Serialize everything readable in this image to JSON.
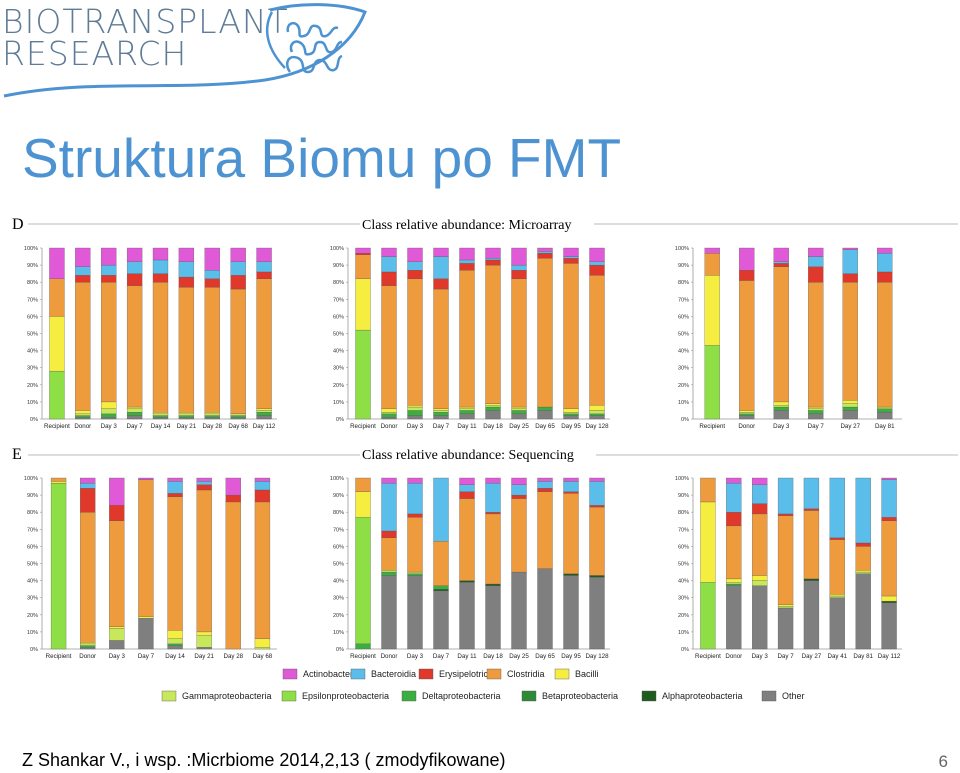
{
  "logo": {
    "line1": "BIOTRANSPLANT",
    "line2": "RESEARCH"
  },
  "title": "Struktura Biomu po FMT",
  "footer": "Z Shankar V., i wsp. :Micrbiome 2014,2,13 ( zmodyfikowane)",
  "page_number": "6",
  "colors": {
    "Actinobacteria": "#e05ad7",
    "Bacteroidia": "#5bbde9",
    "Erysipelotrichi": "#e0392b",
    "Clostridia": "#ee9b3e",
    "Bacilli": "#f5ed3f",
    "Gammaproteobacteria": "#c7e85a",
    "Epsilonproteobacteria": "#8ede45",
    "Deltaproteobacteria": "#3cae41",
    "Betaproteobacteria": "#2e8a36",
    "Alphaproteobacteria": "#1f5a20",
    "Other": "#7f7f7f"
  },
  "chart_data": {
    "type": "bar",
    "stacked": true,
    "ylim": [
      0,
      100
    ],
    "yticks": [
      "0%",
      "10%",
      "20%",
      "30%",
      "40%",
      "50%",
      "60%",
      "70%",
      "80%",
      "90%",
      "100%"
    ],
    "panel_labels": [
      "D",
      "E"
    ],
    "row_titles": [
      "Class relative abundance: Microarray",
      "Class relative abundance: Sequencing"
    ],
    "stack_order": [
      "Other",
      "Alphaproteobacteria",
      "Betaproteobacteria",
      "Deltaproteobacteria",
      "Epsilonproteobacteria",
      "Gammaproteobacteria",
      "Bacilli",
      "Clostridia",
      "Erysipelotrichi",
      "Bacteroidia",
      "Actinobacteria"
    ],
    "legend": {
      "row1": [
        "Actinobacteria",
        "Bacteroidia",
        "Erysipelotrichi",
        "Clostridia",
        "Bacilli"
      ],
      "row2": [
        "Gammaproteobacteria",
        "Epsilonproteobacteria",
        "Deltaproteobacteria",
        "Betaproteobacteria",
        "Alphaproteobacteria",
        "Other"
      ]
    },
    "panels": [
      {
        "row": 0,
        "col": 0,
        "categories": [
          "Recipient",
          "Donor",
          "Day 3",
          "Day 7",
          "Day 14",
          "Day 21",
          "Day 28",
          "Day 68",
          "Day 112"
        ],
        "bars": [
          {
            "Epsilonproteobacteria": 28,
            "Bacilli": 32,
            "Clostridia": 22,
            "Actinobacteria": 18
          },
          {
            "Other": 1,
            "Deltaproteobacteria": 1,
            "Gammaproteobacteria": 1,
            "Bacilli": 2,
            "Clostridia": 75,
            "Erysipelotrichi": 4,
            "Bacteroidia": 5,
            "Actinobacteria": 11
          },
          {
            "Other": 1,
            "Deltaproteobacteria": 2,
            "Gammaproteobacteria": 3,
            "Bacilli": 4,
            "Clostridia": 70,
            "Erysipelotrichi": 4,
            "Bacteroidia": 6,
            "Actinobacteria": 10
          },
          {
            "Other": 2,
            "Deltaproteobacteria": 2,
            "Gammaproteobacteria": 2,
            "Bacilli": 1,
            "Clostridia": 71,
            "Erysipelotrichi": 7,
            "Bacteroidia": 7,
            "Actinobacteria": 8
          },
          {
            "Other": 1,
            "Deltaproteobacteria": 1,
            "Gammaproteobacteria": 1,
            "Bacilli": 1,
            "Clostridia": 76,
            "Erysipelotrichi": 5,
            "Bacteroidia": 8,
            "Actinobacteria": 7
          },
          {
            "Other": 1,
            "Deltaproteobacteria": 1,
            "Gammaproteobacteria": 1,
            "Bacilli": 1,
            "Clostridia": 73,
            "Erysipelotrichi": 6,
            "Bacteroidia": 9,
            "Actinobacteria": 8
          },
          {
            "Other": 1,
            "Deltaproteobacteria": 1,
            "Gammaproteobacteria": 1,
            "Bacilli": 1,
            "Clostridia": 73,
            "Erysipelotrichi": 5,
            "Bacteroidia": 5,
            "Actinobacteria": 13
          },
          {
            "Other": 1,
            "Deltaproteobacteria": 1,
            "Gammaproteobacteria": 1,
            "Clostridia": 73,
            "Erysipelotrichi": 8,
            "Bacteroidia": 8,
            "Actinobacteria": 8
          },
          {
            "Other": 2,
            "Deltaproteobacteria": 2,
            "Gammaproteobacteria": 1,
            "Bacilli": 1,
            "Clostridia": 76,
            "Erysipelotrichi": 4,
            "Bacteroidia": 6,
            "Actinobacteria": 8
          }
        ]
      },
      {
        "row": 0,
        "col": 1,
        "categories": [
          "Recipient",
          "Donor",
          "Day 3",
          "Day 7",
          "Day 11",
          "Day 18",
          "Day 25",
          "Day 65",
          "Day 95",
          "Day 128"
        ],
        "bars": [
          {
            "Epsilonproteobacteria": 52,
            "Bacilli": 30,
            "Clostridia": 14,
            "Erysipelotrichi": 1,
            "Actinobacteria": 3
          },
          {
            "Other": 1,
            "Deltaproteobacteria": 2,
            "Gammaproteobacteria": 1,
            "Bacilli": 2,
            "Clostridia": 72,
            "Erysipelotrichi": 8,
            "Bacteroidia": 9,
            "Actinobacteria": 5
          },
          {
            "Other": 2,
            "Deltaproteobacteria": 3,
            "Gammaproteobacteria": 2,
            "Bacilli": 1,
            "Clostridia": 74,
            "Erysipelotrichi": 5,
            "Bacteroidia": 5,
            "Actinobacteria": 8
          },
          {
            "Other": 2,
            "Deltaproteobacteria": 2,
            "Gammaproteobacteria": 1,
            "Bacilli": 1,
            "Clostridia": 70,
            "Erysipelotrichi": 6,
            "Bacteroidia": 13,
            "Actinobacteria": 5
          },
          {
            "Other": 3,
            "Deltaproteobacteria": 2,
            "Gammaproteobacteria": 1,
            "Bacilli": 1,
            "Clostridia": 80,
            "Erysipelotrichi": 4,
            "Bacteroidia": 2,
            "Actinobacteria": 7
          },
          {
            "Other": 5,
            "Deltaproteobacteria": 2,
            "Gammaproteobacteria": 1,
            "Bacilli": 1,
            "Clostridia": 81,
            "Erysipelotrichi": 3,
            "Bacteroidia": 1,
            "Actinobacteria": 6
          },
          {
            "Other": 3,
            "Deltaproteobacteria": 2,
            "Gammaproteobacteria": 1,
            "Bacilli": 1,
            "Clostridia": 75,
            "Erysipelotrichi": 5,
            "Bacteroidia": 3,
            "Actinobacteria": 10
          },
          {
            "Other": 5,
            "Deltaproteobacteria": 2,
            "Clostridia": 87,
            "Erysipelotrichi": 3,
            "Bacteroidia": 1,
            "Actinobacteria": 2
          },
          {
            "Other": 2,
            "Deltaproteobacteria": 1,
            "Gammaproteobacteria": 1,
            "Bacilli": 2,
            "Clostridia": 85,
            "Erysipelotrichi": 3,
            "Bacteroidia": 1,
            "Actinobacteria": 5
          },
          {
            "Other": 2,
            "Deltaproteobacteria": 1,
            "Gammaproteobacteria": 2,
            "Bacilli": 3,
            "Clostridia": 76,
            "Erysipelotrichi": 6,
            "Bacteroidia": 2,
            "Actinobacteria": 8
          }
        ]
      },
      {
        "row": 0,
        "col": 2,
        "categories": [
          "Recipient",
          "Donor",
          "Day 3",
          "Day 7",
          "Day 27",
          "Day 81"
        ],
        "bars": [
          {
            "Epsilonproteobacteria": 43,
            "Bacilli": 41,
            "Clostridia": 13,
            "Actinobacteria": 3
          },
          {
            "Other": 2,
            "Deltaproteobacteria": 1,
            "Gammaproteobacteria": 1,
            "Bacilli": 1,
            "Clostridia": 76,
            "Erysipelotrichi": 6,
            "Actinobacteria": 13
          },
          {
            "Other": 5,
            "Deltaproteobacteria": 2,
            "Gammaproteobacteria": 1,
            "Bacilli": 2,
            "Clostridia": 79,
            "Erysipelotrichi": 2,
            "Bacteroidia": 1,
            "Actinobacteria": 8
          },
          {
            "Other": 3,
            "Deltaproteobacteria": 2,
            "Gammaproteobacteria": 1,
            "Bacilli": 1,
            "Clostridia": 73,
            "Erysipelotrichi": 9,
            "Bacteroidia": 6,
            "Actinobacteria": 5
          },
          {
            "Other": 5,
            "Deltaproteobacteria": 2,
            "Gammaproteobacteria": 2,
            "Bacilli": 2,
            "Clostridia": 69,
            "Erysipelotrichi": 5,
            "Bacteroidia": 14,
            "Actinobacteria": 1
          },
          {
            "Other": 4,
            "Deltaproteobacteria": 2,
            "Gammaproteobacteria": 1,
            "Clostridia": 73,
            "Erysipelotrichi": 6,
            "Bacteroidia": 11,
            "Actinobacteria": 3
          }
        ]
      },
      {
        "row": 1,
        "col": 0,
        "categories": [
          "Recipient",
          "Donor",
          "Day 3",
          "Day 7",
          "Day 14",
          "Day 21",
          "Day 28",
          "Day 68"
        ],
        "bars": [
          {
            "Epsilonproteobacteria": 97,
            "Clostridia": 2,
            "Bacilli": 1
          },
          {
            "Other": 1,
            "Deltaproteobacteria": 1,
            "Gammaproteobacteria": 1,
            "Bacilli": 1,
            "Clostridia": 76,
            "Erysipelotrichi": 14,
            "Bacteroidia": 3,
            "Actinobacteria": 3
          },
          {
            "Other": 5,
            "Gammaproteobacteria": 7,
            "Bacilli": 1,
            "Clostridia": 62,
            "Erysipelotrichi": 9,
            "Actinobacteria": 16
          },
          {
            "Other": 18,
            "Bacilli": 1,
            "Clostridia": 80,
            "Actinobacteria": 1
          },
          {
            "Other": 2,
            "Deltaproteobacteria": 1,
            "Gammaproteobacteria": 3,
            "Bacilli": 5,
            "Clostridia": 78,
            "Erysipelotrichi": 2,
            "Bacteroidia": 7,
            "Actinobacteria": 2
          },
          {
            "Other": 1,
            "Gammaproteobacteria": 7,
            "Bacilli": 2,
            "Clostridia": 83,
            "Erysipelotrichi": 3,
            "Bacteroidia": 2,
            "Actinobacteria": 2
          },
          {
            "Clostridia": 86,
            "Erysipelotrichi": 4,
            "Actinobacteria": 10
          },
          {
            "Gammaproteobacteria": 1,
            "Bacilli": 5,
            "Clostridia": 80,
            "Erysipelotrichi": 7,
            "Bacteroidia": 5,
            "Actinobacteria": 2
          }
        ]
      },
      {
        "row": 1,
        "col": 1,
        "categories": [
          "Recipient",
          "Donor",
          "Day 3",
          "Day 7",
          "Day 11",
          "Day 18",
          "Day 25",
          "Day 65",
          "Day 95",
          "Day 128"
        ],
        "bars": [
          {
            "Deltaproteobacteria": 3,
            "Epsilonproteobacteria": 74,
            "Bacilli": 15,
            "Clostridia": 8
          },
          {
            "Other": 43,
            "Deltaproteobacteria": 2,
            "Gammaproteobacteria": 1,
            "Clostridia": 19,
            "Erysipelotrichi": 4,
            "Bacteroidia": 28,
            "Actinobacteria": 3
          },
          {
            "Other": 43,
            "Deltaproteobacteria": 1,
            "Gammaproteobacteria": 1,
            "Clostridia": 32,
            "Erysipelotrichi": 2,
            "Bacteroidia": 18,
            "Actinobacteria": 3
          },
          {
            "Other": 34,
            "Deltaproteobacteria": 2,
            "Alphaproteobacteria": 1,
            "Clostridia": 26,
            "Bacteroidia": 37
          },
          {
            "Other": 39,
            "Alphaproteobacteria": 1,
            "Clostridia": 48,
            "Erysipelotrichi": 4,
            "Bacteroidia": 4,
            "Actinobacteria": 4
          },
          {
            "Other": 37,
            "Alphaproteobacteria": 1,
            "Clostridia": 41,
            "Erysipelotrichi": 1,
            "Bacteroidia": 17,
            "Actinobacteria": 3
          },
          {
            "Other": 45,
            "Clostridia": 43,
            "Erysipelotrichi": 2,
            "Bacteroidia": 6,
            "Actinobacteria": 4
          },
          {
            "Other": 47,
            "Clostridia": 45,
            "Erysipelotrichi": 2,
            "Bacteroidia": 4,
            "Actinobacteria": 2
          },
          {
            "Other": 43,
            "Alphaproteobacteria": 1,
            "Clostridia": 47,
            "Erysipelotrichi": 1,
            "Bacteroidia": 6,
            "Actinobacteria": 2
          },
          {
            "Other": 42,
            "Alphaproteobacteria": 1,
            "Clostridia": 40,
            "Erysipelotrichi": 1,
            "Bacteroidia": 14,
            "Actinobacteria": 2
          }
        ]
      },
      {
        "row": 1,
        "col": 2,
        "categories": [
          "Recipient",
          "Donor",
          "Day 3",
          "Day 7",
          "Day 27",
          "Day 41",
          "Day 81",
          "Day 112"
        ],
        "bars": [
          {
            "Epsilonproteobacteria": 39,
            "Bacilli": 47,
            "Clostridia": 14
          },
          {
            "Other": 37,
            "Deltaproteobacteria": 1,
            "Gammaproteobacteria": 1,
            "Bacilli": 2,
            "Clostridia": 31,
            "Erysipelotrichi": 8,
            "Bacteroidia": 17,
            "Actinobacteria": 3
          },
          {
            "Other": 37,
            "Gammaproteobacteria": 3,
            "Bacilli": 3,
            "Clostridia": 36,
            "Erysipelotrichi": 6,
            "Bacteroidia": 11,
            "Actinobacteria": 4
          },
          {
            "Other": 24,
            "Gammaproteobacteria": 1,
            "Bacilli": 1,
            "Clostridia": 52,
            "Erysipelotrichi": 1,
            "Bacteroidia": 21
          },
          {
            "Other": 40,
            "Alphaproteobacteria": 1,
            "Clostridia": 40,
            "Erysipelotrichi": 1,
            "Bacteroidia": 18
          },
          {
            "Other": 30,
            "Gammaproteobacteria": 1,
            "Bacilli": 1,
            "Clostridia": 32,
            "Erysipelotrichi": 1,
            "Bacteroidia": 35
          },
          {
            "Other": 44,
            "Gammaproteobacteria": 1,
            "Bacilli": 1,
            "Clostridia": 14,
            "Erysipelotrichi": 2,
            "Bacteroidia": 38
          },
          {
            "Other": 27,
            "Alphaproteobacteria": 1,
            "Bacilli": 3,
            "Clostridia": 44,
            "Erysipelotrichi": 2,
            "Bacteroidia": 22,
            "Actinobacteria": 1
          }
        ]
      }
    ]
  }
}
